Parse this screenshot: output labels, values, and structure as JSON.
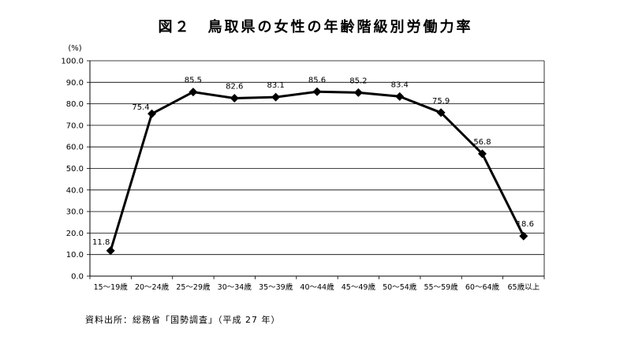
{
  "chart_data": {
    "type": "line",
    "title": "図２　鳥取県の女性の年齢階級別労働力率",
    "ylabel": "(%)",
    "xlabel": "",
    "ylim": [
      0,
      100
    ],
    "yticks": [
      "0.0",
      "10.0",
      "20.0",
      "30.0",
      "40.0",
      "50.0",
      "60.0",
      "70.0",
      "80.0",
      "90.0",
      "100.0"
    ],
    "grid": true,
    "legend": "none",
    "line_color": "#000000",
    "categories": [
      "15～19歳",
      "20～24歳",
      "25～29歳",
      "30～34歳",
      "35～39歳",
      "40～44歳",
      "45～49歳",
      "50～54歳",
      "55～59歳",
      "60～64歳",
      "65歳以上"
    ],
    "values": [
      11.8,
      75.4,
      85.5,
      82.6,
      83.1,
      85.6,
      85.2,
      83.4,
      75.9,
      56.8,
      18.6
    ],
    "data_labels": [
      "11.8",
      "75.4",
      "85.5",
      "82.6",
      "83.1",
      "85.6",
      "85.2",
      "83.4",
      "75.9",
      "56.8",
      "18.6"
    ]
  },
  "source": "資料出所：総務省「国勢調査」（平成 27 年）"
}
